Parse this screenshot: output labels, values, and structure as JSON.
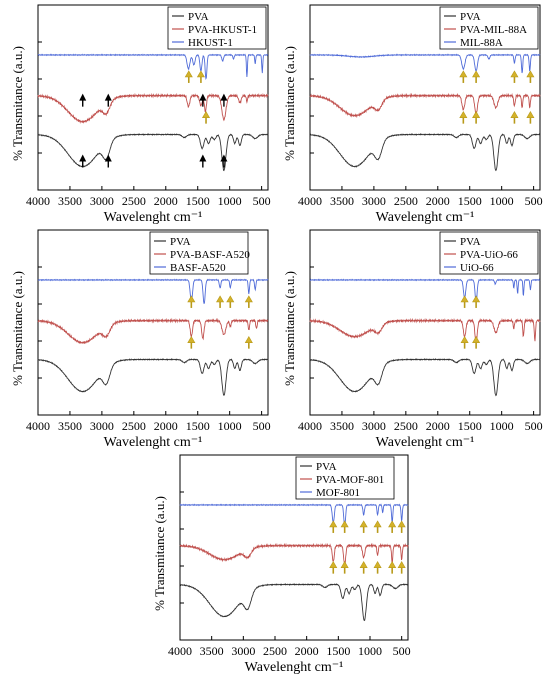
{
  "chart_data": [
    {
      "type": "line",
      "xlabel": "Wavelenght cm⁻¹",
      "ylabel": "% Transmitance (a.u.)",
      "xlim": [
        4000,
        400
      ],
      "x_ticks": [
        "4000",
        "3500",
        "3000",
        "2500",
        "2000",
        "1500",
        "1000",
        "500"
      ],
      "legend_position": "top-center",
      "series": [
        {
          "name": "PVA",
          "color": "#333333"
        },
        {
          "name": "PVA-HKUST-1",
          "color": "#c0504d"
        },
        {
          "name": "HKUST-1",
          "color": "#4f6bd8"
        }
      ],
      "annotations": "black arrows near 3300, 2900, 1420, 1090 cm-1; yellow arrows near 1640, 1450, 1370 cm-1"
    },
    {
      "type": "line",
      "xlabel": "Wavelenght cm⁻¹",
      "ylabel": "% Transmitance (a.u.)",
      "xlim": [
        4000,
        400
      ],
      "x_ticks": [
        "4000",
        "3500",
        "3000",
        "2500",
        "2000",
        "1500",
        "1000",
        "500"
      ],
      "legend_position": "top-right",
      "series": [
        {
          "name": "PVA",
          "color": "#333333"
        },
        {
          "name": "PVA-MIL-88A",
          "color": "#c0504d"
        },
        {
          "name": "MIL-88A",
          "color": "#4f6bd8"
        }
      ],
      "annotations": "yellow arrows near 1600, 1400, 800, 550 cm-1"
    },
    {
      "type": "line",
      "xlabel": "Wavelenght cm⁻¹",
      "ylabel": "% Transmitance (a.u.)",
      "xlim": [
        4000,
        400
      ],
      "x_ticks": [
        "4000",
        "3500",
        "3000",
        "2500",
        "2000",
        "1500",
        "1000",
        "500"
      ],
      "legend_position": "top-center",
      "series": [
        {
          "name": "PVA",
          "color": "#333333"
        },
        {
          "name": "PVA-BASF-A520",
          "color": "#c0504d"
        },
        {
          "name": "BASF-A520",
          "color": "#4f6bd8"
        }
      ],
      "annotations": "yellow arrows near 1600, 1150, 990, 700 cm-1"
    },
    {
      "type": "line",
      "xlabel": "Wavelenght cm⁻¹",
      "ylabel": "% Transmitance (a.u.)",
      "xlim": [
        4000,
        400
      ],
      "x_ticks": [
        "4000",
        "3500",
        "3000",
        "2500",
        "2000",
        "1500",
        "1000",
        "500"
      ],
      "legend_position": "top-center",
      "series": [
        {
          "name": "PVA",
          "color": "#333333"
        },
        {
          "name": "PVA-UiO-66",
          "color": "#c0504d"
        },
        {
          "name": "UiO-66",
          "color": "#4f6bd8"
        }
      ],
      "annotations": "yellow arrows near 1580, 1400 cm-1"
    },
    {
      "type": "line",
      "xlabel": "Wavelenght cm⁻¹",
      "ylabel": "% Transmitance (a.u.)",
      "xlim": [
        4000,
        400
      ],
      "x_ticks": [
        "4000",
        "3500",
        "3000",
        "2500",
        "2000",
        "1500",
        "1000",
        "500"
      ],
      "legend_position": "top-center",
      "series": [
        {
          "name": "PVA",
          "color": "#333333"
        },
        {
          "name": "PVA-MOF-801",
          "color": "#c0504d"
        },
        {
          "name": "MOF-801",
          "color": "#4f6bd8"
        }
      ],
      "annotations": "yellow arrows near 1580, 1400, 1100, 880, 650, 500 cm-1"
    }
  ]
}
